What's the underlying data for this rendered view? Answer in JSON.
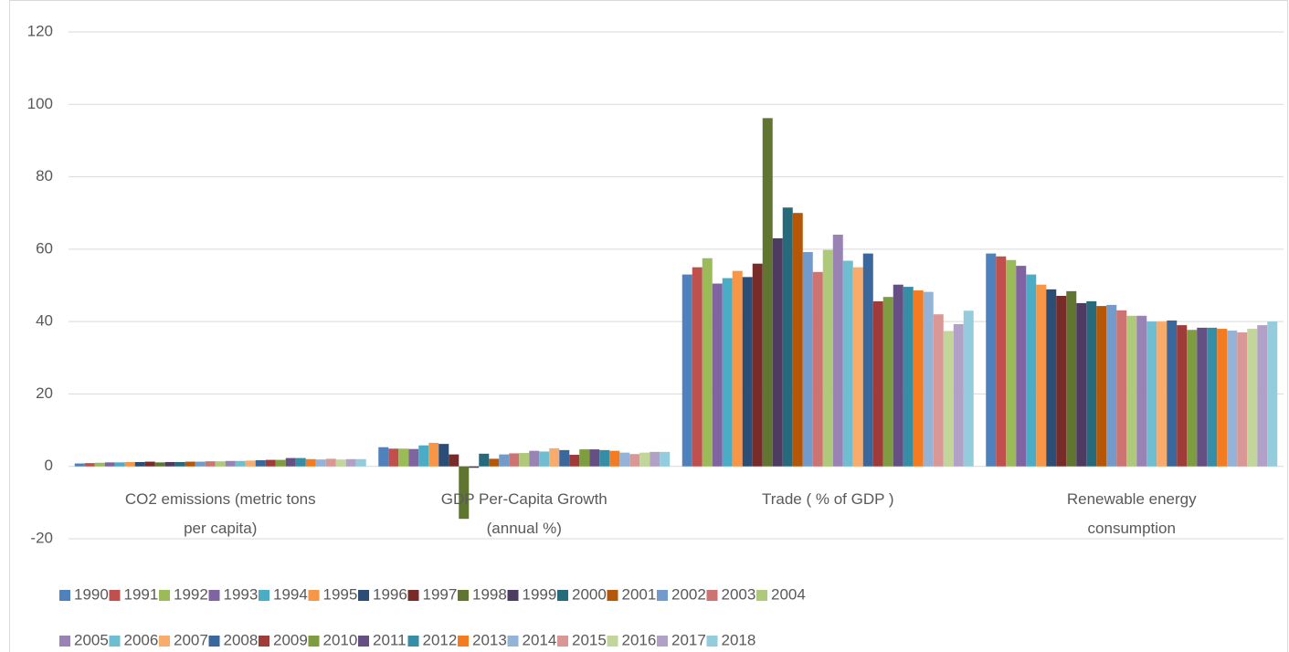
{
  "chart_data": {
    "type": "bar",
    "categories": [
      "CO2 emissions (metric tons per capita)",
      "GDP Per-Capita Growth (annual %)",
      "Trade ( % of GDP )",
      "Renewable energy consumption"
    ],
    "ylim": [
      -20,
      120
    ],
    "yticks": [
      -20,
      0,
      20,
      40,
      60,
      80,
      100,
      120
    ],
    "grid": true,
    "legend": "bottom",
    "series": [
      {
        "name": "1990",
        "color": "#4f81bd",
        "values": [
          0.8,
          5.3,
          53,
          58.8
        ]
      },
      {
        "name": "1991",
        "color": "#c0504d",
        "values": [
          0.9,
          4.9,
          55,
          58
        ]
      },
      {
        "name": "1992",
        "color": "#9bbb59",
        "values": [
          1.0,
          4.9,
          57.5,
          57
        ]
      },
      {
        "name": "1993",
        "color": "#8064a2",
        "values": [
          1.1,
          4.8,
          50.5,
          55.4
        ]
      },
      {
        "name": "1994",
        "color": "#4bacc6",
        "values": [
          1.1,
          5.8,
          52,
          53
        ]
      },
      {
        "name": "1995",
        "color": "#f79646",
        "values": [
          1.2,
          6.5,
          54,
          50.2
        ]
      },
      {
        "name": "1996",
        "color": "#2c4d75",
        "values": [
          1.2,
          6.2,
          52.3,
          48.9
        ]
      },
      {
        "name": "1997",
        "color": "#772c2a",
        "values": [
          1.3,
          3.3,
          56,
          47.1
        ]
      },
      {
        "name": "1998",
        "color": "#5f7530",
        "values": [
          1.1,
          -14.5,
          96.2,
          48.4
        ]
      },
      {
        "name": "1999",
        "color": "#4d3b62",
        "values": [
          1.2,
          -0.4,
          63,
          45.1
        ]
      },
      {
        "name": "2000",
        "color": "#276a7c",
        "values": [
          1.2,
          3.5,
          71.5,
          45.6
        ]
      },
      {
        "name": "2001",
        "color": "#b65708",
        "values": [
          1.3,
          2.1,
          70,
          44.3
        ]
      },
      {
        "name": "2002",
        "color": "#729aca",
        "values": [
          1.3,
          3.3,
          59.2,
          44.6
        ]
      },
      {
        "name": "2003",
        "color": "#cd7371",
        "values": [
          1.4,
          3.6,
          53.7,
          43.1
        ]
      },
      {
        "name": "2004",
        "color": "#afc97a",
        "values": [
          1.4,
          3.7,
          59.8,
          41.6
        ]
      },
      {
        "name": "2005",
        "color": "#9983b5",
        "values": [
          1.5,
          4.3,
          64,
          41.6
        ]
      },
      {
        "name": "2006",
        "color": "#6fbdd1",
        "values": [
          1.5,
          4.1,
          56.8,
          40
        ]
      },
      {
        "name": "2007",
        "color": "#f9ab6b",
        "values": [
          1.6,
          5.0,
          55,
          40
        ]
      },
      {
        "name": "2008",
        "color": "#3a679c",
        "values": [
          1.7,
          4.5,
          58.8,
          40.3
        ]
      },
      {
        "name": "2009",
        "color": "#9f3b38",
        "values": [
          1.8,
          3.2,
          45.6,
          39
        ]
      },
      {
        "name": "2010",
        "color": "#7e9c40",
        "values": [
          1.8,
          4.7,
          46.8,
          37.7
        ]
      },
      {
        "name": "2011",
        "color": "#664f83",
        "values": [
          2.3,
          4.7,
          50.2,
          38.3
        ]
      },
      {
        "name": "2012",
        "color": "#358ea6",
        "values": [
          2.3,
          4.5,
          49.6,
          38.3
        ]
      },
      {
        "name": "2013",
        "color": "#f47b20",
        "values": [
          2.0,
          4.3,
          48.6,
          38
        ]
      },
      {
        "name": "2014",
        "color": "#95b3d7",
        "values": [
          1.9,
          3.8,
          48.2,
          37.5
        ]
      },
      {
        "name": "2015",
        "color": "#d99795",
        "values": [
          2.1,
          3.4,
          42,
          37
        ]
      },
      {
        "name": "2016",
        "color": "#c2d69b",
        "values": [
          1.9,
          3.8,
          37.4,
          38
        ]
      },
      {
        "name": "2017",
        "color": "#b2a1c7",
        "values": [
          2.0,
          4.0,
          39.3,
          39
        ]
      },
      {
        "name": "2018",
        "color": "#93cddd",
        "values": [
          2.0,
          4.0,
          43,
          40
        ]
      }
    ]
  }
}
